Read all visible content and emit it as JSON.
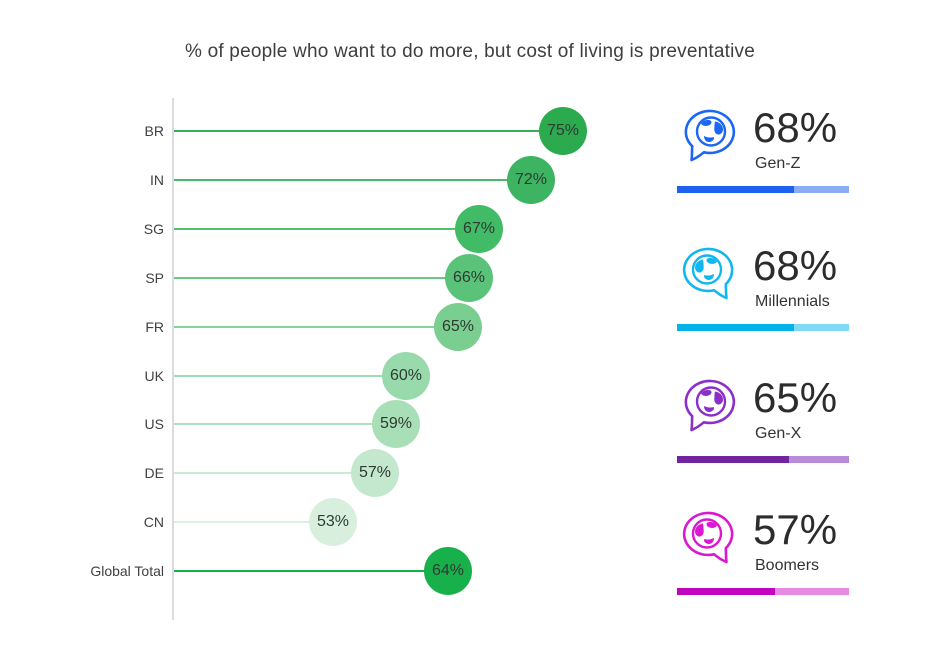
{
  "title": "% of people who want to do more, but cost of living is preventative",
  "chart_data": [
    {
      "type": "bar",
      "variant": "horizontal-lollipop",
      "title": "% of people who want to do more, but cost of living is preventative",
      "categories": [
        "BR",
        "IN",
        "SG",
        "SP",
        "FR",
        "UK",
        "US",
        "DE",
        "CN",
        "Global Total"
      ],
      "values": [
        75,
        72,
        67,
        66,
        65,
        60,
        59,
        57,
        53,
        64
      ],
      "value_labels": [
        "75%",
        "72%",
        "67%",
        "66%",
        "65%",
        "60%",
        "59%",
        "57%",
        "53%",
        "64%"
      ],
      "unit": "%",
      "xlabel": "",
      "ylabel": "",
      "xlim": [
        38,
        80
      ],
      "grid": false,
      "legend": false,
      "dot_colors": [
        "#2caa4e",
        "#3db461",
        "#42bb66",
        "#5ac379",
        "#79ce90",
        "#98daab",
        "#a8dfb6",
        "#c4e8cd",
        "#d9efdd",
        "#18b04b"
      ],
      "stem_colors": [
        "#33b059",
        "#48ba6b",
        "#51c071",
        "#68c983",
        "#83d399",
        "#a0dcb1",
        "#afe1bc",
        "#c9ebd2",
        "#dbf0df",
        "#18b04b"
      ],
      "axis_color": "#dcdcdc"
    },
    {
      "type": "bar",
      "variant": "generation-progress-list",
      "categories": [
        "Gen-Z",
        "Millennials",
        "Gen-X",
        "Boomers"
      ],
      "values": [
        68,
        68,
        65,
        57
      ],
      "value_labels": [
        "68%",
        "68%",
        "65%",
        "57%"
      ],
      "unit": "%",
      "xlim": [
        0,
        100
      ],
      "icon": "speech-bubble-globe-icon",
      "colors": [
        {
          "icon": "#1b66f2",
          "bar": "#1e63f0",
          "bar_light": "#8aadf5"
        },
        {
          "icon": "#12b7ef",
          "bar": "#04b2ea",
          "bar_light": "#80d9f5"
        },
        {
          "icon": "#8b2fc9",
          "bar": "#71249f",
          "bar_light": "#b78bd6"
        },
        {
          "icon": "#da18d2",
          "bar": "#c004c0",
          "bar_light": "#e88ae4"
        }
      ]
    }
  ]
}
